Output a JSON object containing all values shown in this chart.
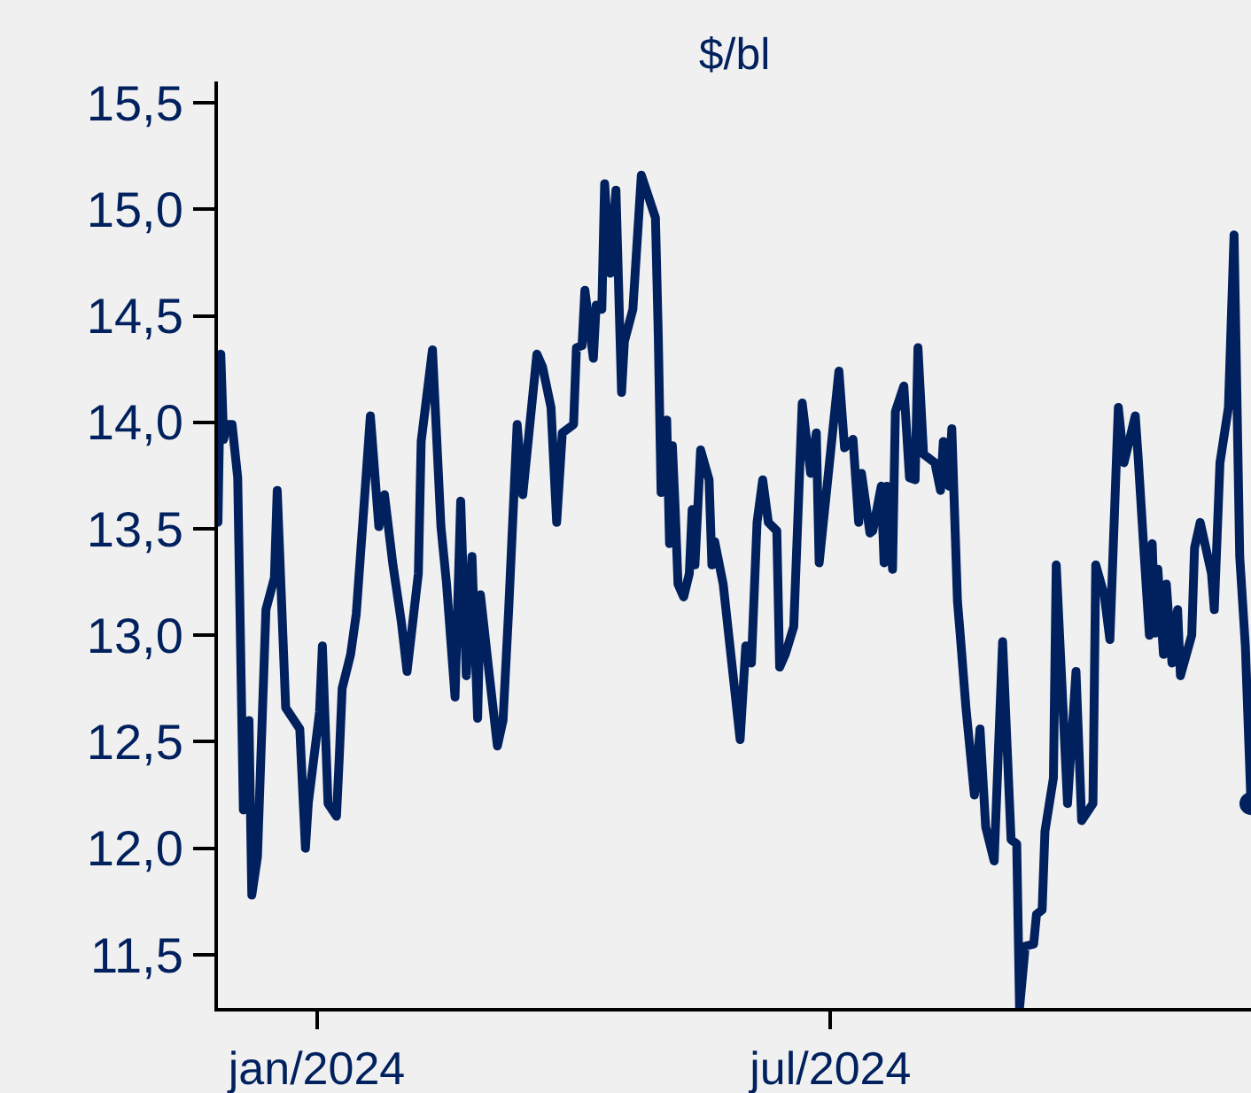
{
  "chart_data": {
    "type": "line",
    "title": "$/bl",
    "xlim": [
      "2023-11-27",
      "2024-11-27"
    ],
    "xticks": [
      {
        "value": "2024-01-01",
        "label": "jan/2024"
      },
      {
        "value": "2024-07-01",
        "label": "jul/2024"
      }
    ],
    "ylim": [
      11.25,
      15.6
    ],
    "yticks": [
      {
        "value": 11.5,
        "label": "11,5"
      },
      {
        "value": 12,
        "label": "12,0"
      },
      {
        "value": 12.5,
        "label": "12,5"
      },
      {
        "value": 13,
        "label": "13,0"
      },
      {
        "value": 13.5,
        "label": "13,5"
      },
      {
        "value": 14,
        "label": "14,0"
      },
      {
        "value": 14.5,
        "label": "14,5"
      },
      {
        "value": 15,
        "label": "15,0"
      },
      {
        "value": 15.5,
        "label": "15,5"
      }
    ],
    "series": [
      {
        "color": "#00215e",
        "marker": "none",
        "line_style": "solid",
        "x": [
          "2023-11-27",
          "2023-11-28",
          "2023-11-29",
          "2023-11-30",
          "2023-12-02",
          "2023-12-04",
          "2023-12-06",
          "2023-12-08",
          "2023-12-09",
          "2023-12-11",
          "2023-12-14",
          "2023-12-17",
          "2023-12-18",
          "2023-12-21",
          "2023-12-26",
          "2023-12-28",
          "2023-12-29",
          "2024-01-02",
          "2024-01-03",
          "2024-01-05",
          "2024-01-08",
          "2024-01-09",
          "2024-01-10",
          "2024-01-13",
          "2024-01-15",
          "2024-01-17",
          "2024-01-20",
          "2024-01-23",
          "2024-01-25",
          "2024-01-28",
          "2024-01-31",
          "2024-02-02",
          "2024-02-06",
          "2024-02-07",
          "2024-02-11",
          "2024-02-14",
          "2024-02-16",
          "2024-02-19",
          "2024-02-21",
          "2024-02-23",
          "2024-02-25",
          "2024-02-27",
          "2024-02-28",
          "2024-03-02",
          "2024-03-05",
          "2024-03-07",
          "2024-03-09",
          "2024-03-12",
          "2024-03-14",
          "2024-03-19",
          "2024-03-21",
          "2024-03-24",
          "2024-03-26",
          "2024-03-28",
          "2024-04-01",
          "2024-04-02",
          "2024-04-04",
          "2024-04-05",
          "2024-04-08",
          "2024-04-09",
          "2024-04-11",
          "2024-04-12",
          "2024-04-14",
          "2024-04-16",
          "2024-04-18",
          "2024-04-19",
          "2024-04-22",
          "2024-04-25",
          "2024-04-30",
          "2024-05-01",
          "2024-05-02",
          "2024-05-04",
          "2024-05-05",
          "2024-05-06",
          "2024-05-07",
          "2024-05-08",
          "2024-05-10",
          "2024-05-12",
          "2024-05-13",
          "2024-05-14",
          "2024-05-16",
          "2024-05-19",
          "2024-05-20",
          "2024-05-21",
          "2024-05-24",
          "2024-05-30",
          "2024-06-01",
          "2024-06-03",
          "2024-06-05",
          "2024-06-07",
          "2024-06-09",
          "2024-06-12",
          "2024-06-13",
          "2024-06-15",
          "2024-06-18",
          "2024-06-21",
          "2024-06-24",
          "2024-06-26",
          "2024-06-27",
          "2024-07-04",
          "2024-07-06",
          "2024-07-09",
          "2024-07-11",
          "2024-07-12",
          "2024-07-15",
          "2024-07-16",
          "2024-07-19",
          "2024-07-20",
          "2024-07-21",
          "2024-07-23",
          "2024-07-24",
          "2024-07-27",
          "2024-07-29",
          "2024-07-31",
          "2024-08-01",
          "2024-08-03",
          "2024-08-07",
          "2024-08-09",
          "2024-08-10",
          "2024-08-12",
          "2024-08-13",
          "2024-08-15",
          "2024-08-16",
          "2024-08-18",
          "2024-08-21",
          "2024-08-23",
          "2024-08-25",
          "2024-08-28",
          "2024-08-31",
          "2024-09-03",
          "2024-09-05",
          "2024-09-06",
          "2024-09-08",
          "2024-09-11",
          "2024-09-12",
          "2024-09-14",
          "2024-09-15",
          "2024-09-18",
          "2024-09-19",
          "2024-09-23",
          "2024-09-26",
          "2024-09-28",
          "2024-10-02",
          "2024-10-03",
          "2024-10-06",
          "2024-10-08",
          "2024-10-11",
          "2024-10-13",
          "2024-10-17",
          "2024-10-18",
          "2024-10-20",
          "2024-10-22",
          "2024-10-23",
          "2024-10-24",
          "2024-10-25",
          "2024-10-27",
          "2024-10-28",
          "2024-10-30",
          "2024-11-01",
          "2024-11-02",
          "2024-11-06",
          "2024-11-07",
          "2024-11-09",
          "2024-11-13",
          "2024-11-14",
          "2024-11-16",
          "2024-11-19",
          "2024-11-21",
          "2024-11-23",
          "2024-11-25",
          "2024-11-27"
        ],
        "values": [
          13.53,
          14.32,
          13.92,
          13.99,
          13.99,
          13.74,
          12.18,
          12.6,
          11.78,
          11.96,
          13.12,
          13.27,
          13.68,
          12.66,
          12.56,
          12.0,
          12.21,
          12.64,
          12.95,
          12.21,
          12.15,
          12.43,
          12.75,
          12.91,
          13.1,
          13.47,
          14.03,
          13.51,
          13.66,
          13.33,
          13.06,
          12.83,
          13.29,
          13.91,
          14.34,
          13.51,
          13.24,
          12.71,
          13.63,
          12.81,
          13.37,
          12.61,
          13.19,
          12.83,
          12.48,
          12.6,
          13.12,
          13.99,
          13.66,
          14.32,
          14.26,
          14.07,
          13.53,
          13.95,
          13.99,
          14.35,
          14.36,
          14.62,
          14.3,
          14.55,
          14.53,
          15.12,
          14.7,
          15.09,
          14.14,
          14.38,
          14.53,
          15.16,
          14.96,
          14.41,
          13.67,
          14.01,
          13.43,
          13.89,
          13.59,
          13.24,
          13.18,
          13.29,
          13.59,
          13.33,
          13.87,
          13.73,
          13.33,
          13.44,
          13.24,
          12.51,
          12.95,
          12.87,
          13.53,
          13.73,
          13.53,
          13.49,
          12.85,
          12.91,
          13.04,
          14.09,
          13.76,
          13.95,
          13.34,
          14.24,
          13.88,
          13.92,
          13.53,
          13.76,
          13.48,
          13.49,
          13.7,
          13.34,
          13.7,
          13.31,
          14.05,
          14.17,
          13.74,
          13.73,
          14.35,
          13.85,
          13.81,
          13.68,
          13.91,
          13.7,
          13.97,
          13.16,
          13.0,
          12.66,
          12.25,
          12.56,
          12.1,
          11.94,
          12.97,
          12.04,
          12.02,
          11.25,
          11.54,
          11.55,
          11.69,
          11.71,
          12.08,
          12.33,
          13.33,
          12.21,
          12.83,
          12.13,
          12.21,
          13.33,
          13.19,
          12.98,
          14.07,
          13.81,
          14.03,
          13.84,
          13.41,
          13.0,
          13.43,
          13.01,
          13.31,
          12.91,
          13.24,
          12.87,
          13.12,
          12.81,
          13.0,
          13.41,
          13.53,
          13.29,
          13.12,
          13.81,
          14.07,
          14.88,
          13.37,
          12.95,
          12.21
        ]
      },
      {
        "type": "scatter",
        "color": "#00215e",
        "marker": "circle",
        "x": [
          "2024-11-27"
        ],
        "values": [
          12.21
        ]
      }
    ]
  }
}
